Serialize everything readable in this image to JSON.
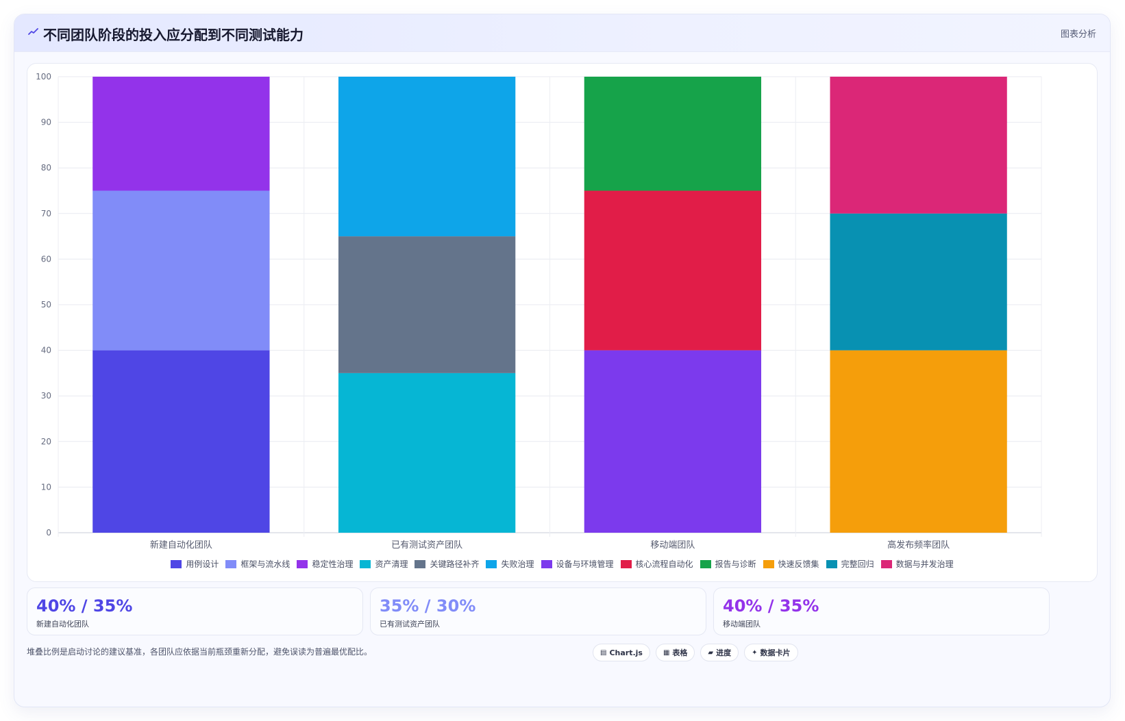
{
  "header": {
    "title": "不同团队阶段的投入应分配到不同测试能力",
    "tag": "图表分析",
    "icon": "trend-line-icon"
  },
  "chart_data": {
    "type": "bar",
    "stacked": true,
    "categories": [
      "新建自动化团队",
      "已有测试资产团队",
      "移动端团队",
      "高发布频率团队"
    ],
    "ylim": [
      0,
      100
    ],
    "yticks": [
      0,
      10,
      20,
      30,
      40,
      50,
      60,
      70,
      80,
      90,
      100
    ],
    "grid": true,
    "legend_position": "bottom",
    "series": [
      {
        "name": "用例设计",
        "color": "#4f46e5",
        "values": [
          40,
          0,
          0,
          0
        ]
      },
      {
        "name": "框架与流水线",
        "color": "#818cf8",
        "values": [
          35,
          0,
          0,
          0
        ]
      },
      {
        "name": "稳定性治理",
        "color": "#9333ea",
        "values": [
          25,
          0,
          0,
          0
        ]
      },
      {
        "name": "资产清理",
        "color": "#06b6d4",
        "values": [
          0,
          35,
          0,
          0
        ]
      },
      {
        "name": "关键路径补齐",
        "color": "#64748b",
        "values": [
          0,
          30,
          0,
          0
        ]
      },
      {
        "name": "失败治理",
        "color": "#0ea5e9",
        "values": [
          0,
          35,
          0,
          0
        ]
      },
      {
        "name": "设备与环境管理",
        "color": "#7c3aed",
        "values": [
          0,
          0,
          40,
          0
        ]
      },
      {
        "name": "核心流程自动化",
        "color": "#e11d48",
        "values": [
          0,
          0,
          35,
          0
        ]
      },
      {
        "name": "报告与诊断",
        "color": "#16a34a",
        "values": [
          0,
          0,
          25,
          0
        ]
      },
      {
        "name": "快速反馈集",
        "color": "#f59e0b",
        "values": [
          0,
          0,
          0,
          40
        ]
      },
      {
        "name": "完整回归",
        "color": "#0891b2",
        "values": [
          0,
          0,
          0,
          30
        ]
      },
      {
        "name": "数据与并发治理",
        "color": "#db2777",
        "values": [
          0,
          0,
          0,
          30
        ]
      }
    ]
  },
  "stats": [
    {
      "value": "40% / 35%",
      "label": "新建自动化团队",
      "color": "#4f46e5"
    },
    {
      "value": "35% / 30%",
      "label": "已有测试资产团队",
      "color": "#818cf8"
    },
    {
      "value": "40% / 35%",
      "label": "移动端团队",
      "color": "#9333ea"
    }
  ],
  "footer": {
    "note": "堆叠比例是启动讨论的建议基准，各团队应依据当前瓶颈重新分配，避免误读为普遍最优配比。",
    "pills": [
      {
        "label": "Chart.js",
        "icon": "chart-icon",
        "glyph": "▤"
      },
      {
        "label": "表格",
        "icon": "table-icon",
        "glyph": "▦"
      },
      {
        "label": "进度",
        "icon": "progress-icon",
        "glyph": "▰"
      },
      {
        "label": "数据卡片",
        "icon": "sparkle-icon",
        "glyph": "✦"
      }
    ]
  }
}
